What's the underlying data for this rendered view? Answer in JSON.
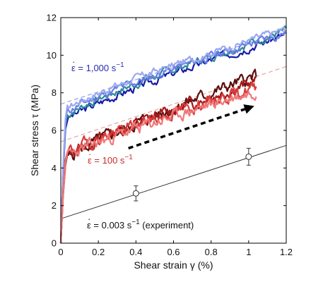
{
  "chart_data": {
    "type": "line",
    "title": "",
    "xlabel": "Shear strain γ (%)",
    "ylabel": "Shear stress τ (MPa)",
    "xlim": [
      0,
      1.2
    ],
    "ylim": [
      0,
      12
    ],
    "xticks": [
      0,
      0.2,
      0.4,
      0.6,
      0.8,
      1,
      1.2
    ],
    "xtick_labels": [
      "0",
      "0.2",
      "0.4",
      "0.6",
      "0.8",
      "1",
      "1.2"
    ],
    "yticks": [
      0,
      2,
      4,
      6,
      8,
      10,
      12
    ],
    "ytick_labels": [
      "0",
      "2",
      "4",
      "6",
      "8",
      "10",
      "12"
    ],
    "grid": false,
    "legend": "none",
    "colors": {
      "high_rate": [
        "#1a1aa8",
        "#2b8a9a",
        "#6a7de6",
        "#9aa8f0"
      ],
      "mid_rate": [
        "#5a0d0d",
        "#a01818",
        "#d93b3b",
        "#f07878"
      ],
      "experiment": "#333333",
      "fit_high": "#8a8ae0",
      "fit_mid": "#e89090",
      "arrow": "#000000"
    },
    "annotations": {
      "high": {
        "dot": "·",
        "label": "ε = 1,000 s",
        "sup": "−1",
        "color": "#2a2ab0"
      },
      "mid": {
        "dot": "·",
        "label": "ε = 100 s",
        "sup": "−1",
        "color": "#cc2a2a"
      },
      "low": {
        "dot": "·",
        "label": "ε = 0.003 s",
        "sup": "−1",
        "suffix": " (experiment)",
        "color": "#111111"
      }
    },
    "series": [
      {
        "group": "high_rate",
        "start": 6.6,
        "end": 11.1,
        "noise": 0.16,
        "seed": 3
      },
      {
        "group": "high_rate",
        "start": 6.8,
        "end": 11.3,
        "noise": 0.16,
        "seed": 7
      },
      {
        "group": "high_rate",
        "start": 7.0,
        "end": 11.2,
        "noise": 0.17,
        "seed": 11
      },
      {
        "group": "high_rate",
        "start": 7.2,
        "end": 11.4,
        "noise": 0.15,
        "seed": 17
      },
      {
        "group": "mid_rate",
        "start": 4.5,
        "end": 8.9,
        "noise": 0.24,
        "seed": 5
      },
      {
        "group": "mid_rate",
        "start": 4.7,
        "end": 8.6,
        "noise": 0.24,
        "seed": 13
      },
      {
        "group": "mid_rate",
        "start": 4.8,
        "end": 8.3,
        "noise": 0.24,
        "seed": 19
      },
      {
        "group": "mid_rate",
        "start": 4.6,
        "end": 8.1,
        "noise": 0.24,
        "seed": 23
      }
    ],
    "experiment_points": [
      {
        "x": 0.4,
        "y": 2.65,
        "err": 0.4
      },
      {
        "x": 1.0,
        "y": 4.6,
        "err": 0.45
      }
    ],
    "experiment_fit": {
      "x": [
        0,
        1.2
      ],
      "y": [
        1.3,
        5.2
      ]
    },
    "fit_high": {
      "x": [
        0,
        1.2
      ],
      "y": [
        7.4,
        11.3
      ]
    },
    "fit_mid": {
      "x": [
        0,
        1.2
      ],
      "y": [
        5.4,
        9.4
      ]
    },
    "arrow": {
      "from": [
        0.36,
        5.05
      ],
      "to": [
        1.03,
        7.3
      ]
    }
  }
}
